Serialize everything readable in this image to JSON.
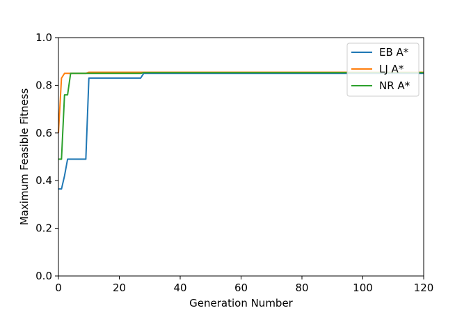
{
  "chart_data": {
    "type": "line",
    "title": "",
    "xlabel": "Generation Number",
    "ylabel": "Maximum Feasible Fitness",
    "xlim": [
      0,
      120
    ],
    "ylim": [
      0.0,
      1.0
    ],
    "xticks": [
      "0",
      "20",
      "40",
      "60",
      "80",
      "100",
      "120"
    ],
    "yticks": [
      "0.0",
      "0.2",
      "0.4",
      "0.6",
      "0.8",
      "1.0"
    ],
    "grid": false,
    "legend_position": "top-right",
    "series": [
      {
        "name": "EB A*",
        "color": "#1f77b4",
        "points": [
          [
            0,
            0.365
          ],
          [
            1,
            0.365
          ],
          [
            2,
            0.42
          ],
          [
            3,
            0.49
          ],
          [
            9,
            0.49
          ],
          [
            10,
            0.83
          ],
          [
            27,
            0.83
          ],
          [
            28,
            0.85
          ],
          [
            120,
            0.85
          ]
        ]
      },
      {
        "name": "LJ A*",
        "color": "#ff7f0e",
        "points": [
          [
            0,
            0.6
          ],
          [
            1,
            0.83
          ],
          [
            2,
            0.85
          ],
          [
            9,
            0.85
          ],
          [
            10,
            0.855
          ],
          [
            120,
            0.855
          ]
        ]
      },
      {
        "name": "NR A*",
        "color": "#2ca02c",
        "points": [
          [
            0,
            0.49
          ],
          [
            1,
            0.49
          ],
          [
            2,
            0.76
          ],
          [
            3,
            0.76
          ],
          [
            4,
            0.85
          ],
          [
            27,
            0.85
          ],
          [
            28,
            0.853
          ],
          [
            120,
            0.853
          ]
        ]
      }
    ]
  }
}
